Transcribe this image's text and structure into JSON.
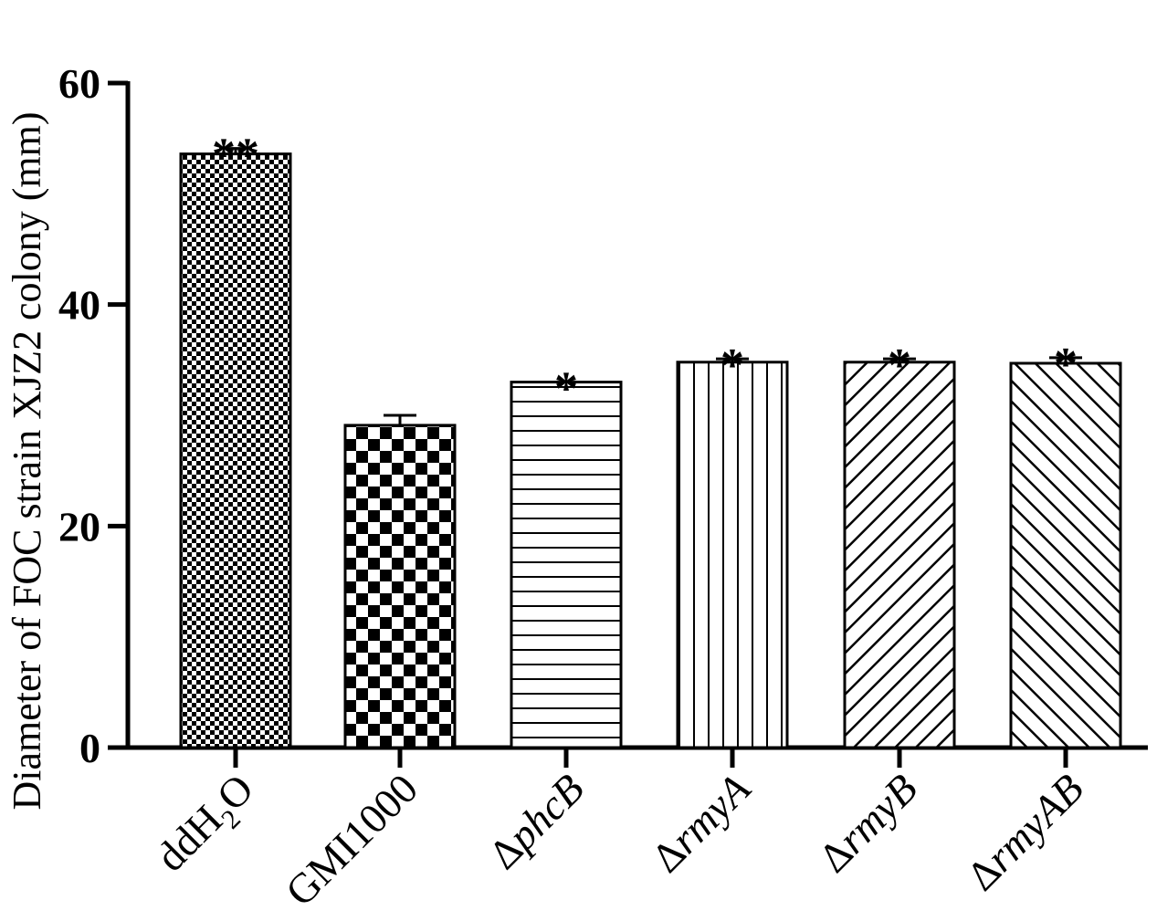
{
  "chart_data": {
    "type": "bar",
    "ylabel": "Diameter of  FOC strain XJZ2 colony (mm)",
    "ylim": [
      0,
      60
    ],
    "yticks": [
      0,
      20,
      40,
      60
    ],
    "categories": [
      {
        "prefix": "",
        "name": "ddH",
        "sub": "2",
        "suffix": "O",
        "italic": false
      },
      {
        "prefix": "",
        "name": "GMI1000",
        "sub": "",
        "suffix": "",
        "italic": false
      },
      {
        "prefix": "Δ",
        "name": "phcB",
        "sub": "",
        "suffix": "",
        "italic": true
      },
      {
        "prefix": "Δ",
        "name": "rmyA",
        "sub": "",
        "suffix": "",
        "italic": true
      },
      {
        "prefix": "Δ",
        "name": "rmyB",
        "sub": "",
        "suffix": "",
        "italic": true
      },
      {
        "prefix": "Δ",
        "name": "rmyAB",
        "sub": "",
        "suffix": "",
        "italic": true
      }
    ],
    "values": [
      53.6,
      29.1,
      33.0,
      34.8,
      34.8,
      34.7
    ],
    "errors": [
      0.5,
      0.9,
      0.0,
      0.3,
      0.3,
      0.5
    ],
    "significance": [
      "**",
      "",
      "*",
      "*",
      "*",
      "*"
    ],
    "patterns": [
      "fine-checker",
      "checker",
      "horizontal-lines",
      "vertical-lines",
      "diagonal-right",
      "diagonal-left"
    ],
    "grid": false,
    "legend": "none"
  }
}
